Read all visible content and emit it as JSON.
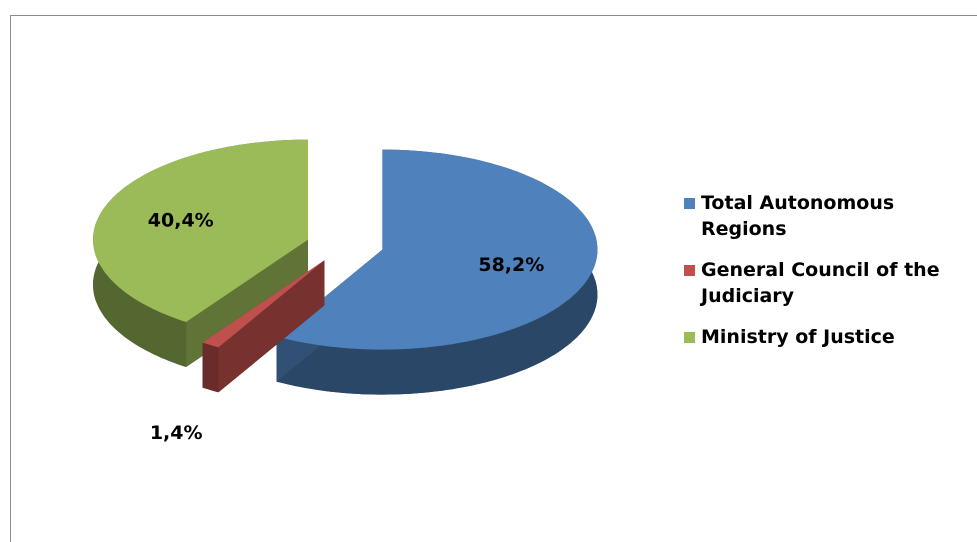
{
  "chart_data": {
    "type": "pie",
    "categories": [
      "Total Autonomous Regions",
      "General Council of the Judiciary",
      "Ministry of Justice"
    ],
    "values": [
      58.2,
      1.4,
      40.4
    ],
    "value_labels": [
      "58,2%",
      "1,4%",
      "40,4%"
    ],
    "colors": [
      "#4f81bd",
      "#c0504d",
      "#9bbb59"
    ],
    "legend": "right"
  }
}
